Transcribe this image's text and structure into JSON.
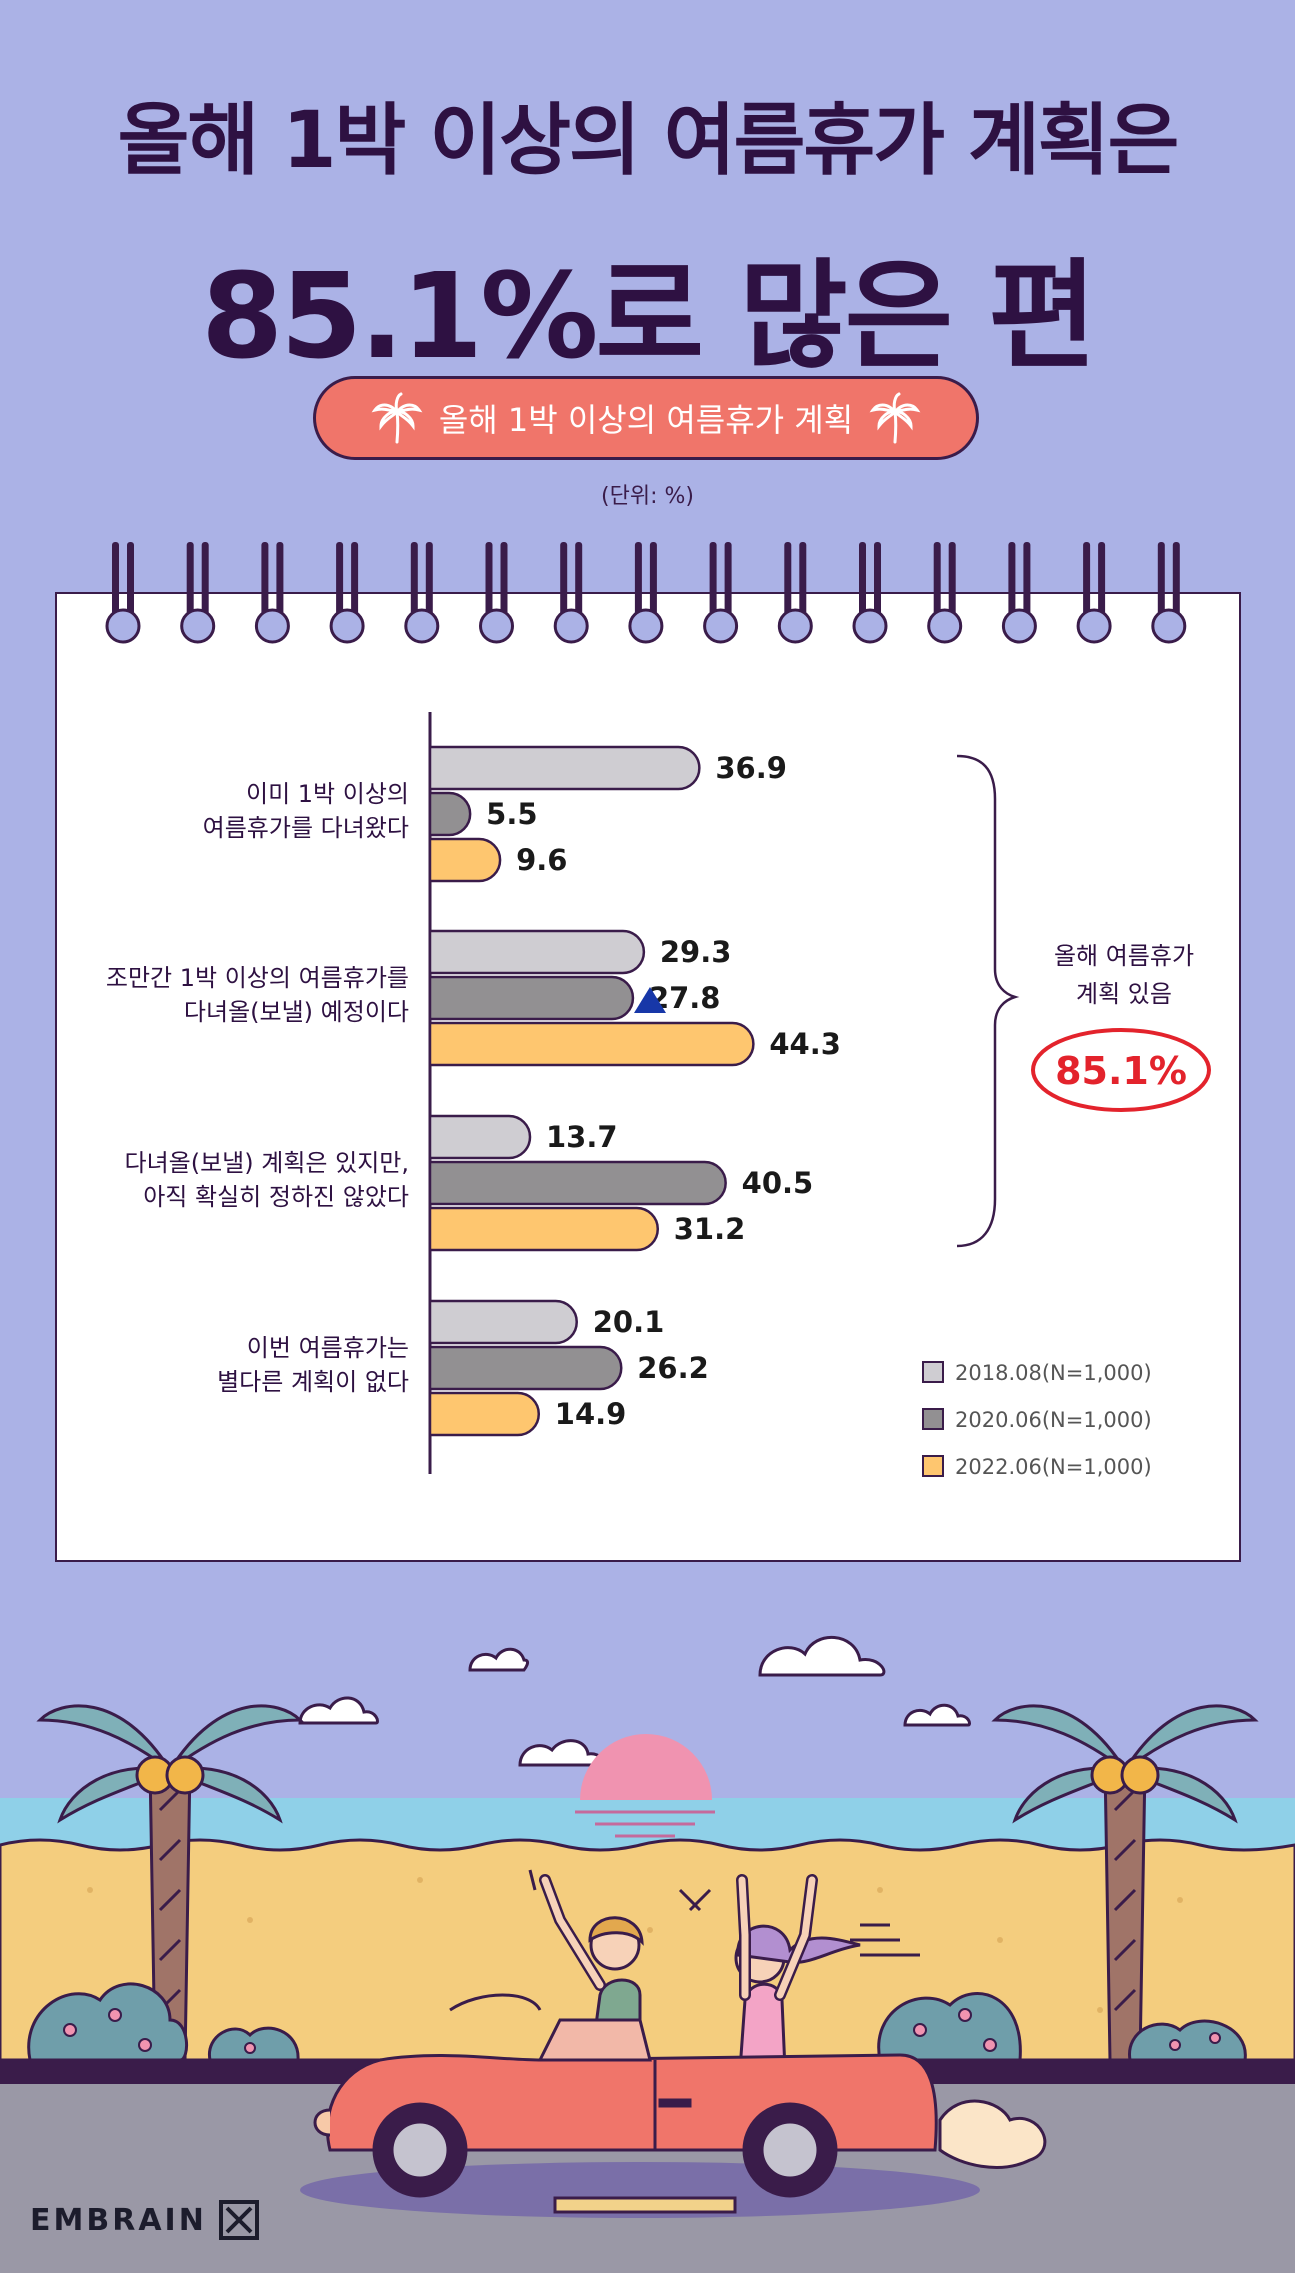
{
  "title": {
    "line1": "올해 1박 이상의 여름휴가 계획은",
    "line2": "85.1%로 많은 편"
  },
  "subtitle": "올해 1박 이상의 여름휴가 계획",
  "unit": "(단위: %)",
  "bracket": {
    "label_line1": "올해 여름휴가",
    "label_line2": "계획 있음",
    "value": "85.1%"
  },
  "logo": "EMBRAIN",
  "colors": {
    "s1": "#cfcdd2",
    "s2": "#929092",
    "s3": "#fec66f",
    "outline": "#3a1c4a",
    "accent_red": "#e3232c",
    "marker": "#1737a8"
  },
  "chart_data": {
    "type": "bar",
    "orientation": "horizontal",
    "categories": [
      {
        "line1": "이미 1박 이상의",
        "line2": "여름휴가를 다녀왔다"
      },
      {
        "line1": "조만간 1박 이상의 여름휴가를",
        "line2": "다녀올(보낼) 예정이다"
      },
      {
        "line1": "다녀올(보낼) 계획은 있지만,",
        "line2": "아직 확실히 정하진 않았다"
      },
      {
        "line1": "이번 여름휴가는",
        "line2": "별다른 계획이 없다"
      }
    ],
    "series": [
      {
        "name": "2018.08(N=1,000)",
        "values": [
          36.9,
          29.3,
          13.7,
          20.1
        ]
      },
      {
        "name": "2020.06(N=1,000)",
        "values": [
          5.5,
          27.8,
          40.5,
          26.2
        ]
      },
      {
        "name": "2022.06(N=1,000)",
        "values": [
          9.6,
          44.3,
          31.2,
          14.9
        ]
      }
    ],
    "value_labels": [
      [
        "36.9",
        "29.3",
        "13.7",
        "20.1"
      ],
      [
        "5.5",
        "27.8",
        "40.5",
        "26.2"
      ],
      [
        "9.6",
        "44.3",
        "31.2",
        "14.9"
      ]
    ],
    "xlim": [
      0,
      50
    ],
    "legend_position": "bottom-right",
    "marker": {
      "type": "triangle-up",
      "series": 1,
      "category": 1
    }
  }
}
